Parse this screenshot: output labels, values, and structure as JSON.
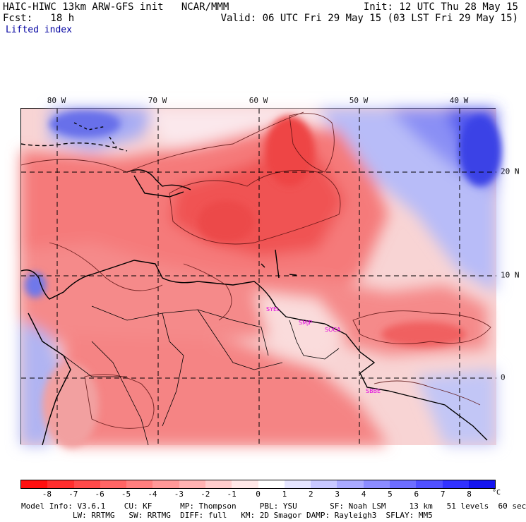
{
  "header": {
    "left_line1": "HAIC-HIWC 13km ARW-GFS init   NCAR/MMM",
    "left_line2": "Fcst:   18 h",
    "right_line1": "Init: 12 UTC Thu 28 May 15",
    "right_line2": "Valid: 06 UTC Fri 29 May 15 (03 LST Fri 29 May 15)",
    "field": "Lifted index"
  },
  "axes": {
    "lon_labels": [
      "80 W",
      "70 W",
      "60 W",
      "50 W",
      "40 W"
    ],
    "lat_labels": [
      "20 N",
      "10 N",
      "0"
    ]
  },
  "stations": [
    "SYEL",
    "SMJP",
    "SOCA",
    "SBBE"
  ],
  "colorbar": {
    "ticks": [
      "-8",
      "-7",
      "-6",
      "-5",
      "-4",
      "-3",
      "-2",
      "-1",
      "0",
      "1",
      "2",
      "3",
      "4",
      "5",
      "6",
      "7",
      "8"
    ],
    "unit": "°C",
    "colors": [
      "#ff1010",
      "#ff2e2e",
      "#ff4a4a",
      "#ff6565",
      "#ff7e7e",
      "#ff9898",
      "#ffb2b2",
      "#ffcdcd",
      "#ffe7e7",
      "#ffffff",
      "#e6e6ff",
      "#c8c8ff",
      "#aaaaff",
      "#8c8cff",
      "#6e6eff",
      "#5050ff",
      "#3232ff",
      "#1414f0"
    ]
  },
  "model_info": {
    "line1": "Model Info: V3.6.1    CU: KF      MP: Thompson     PBL: YSU       SF: Noah LSM     13 km   51 levels  60 sec",
    "line2": "           LW: RRTMG   SW: RRTMG  DIFF: full   KM: 2D Smagor DAMP: Rayleigh3  SFLAY: MM5"
  }
}
